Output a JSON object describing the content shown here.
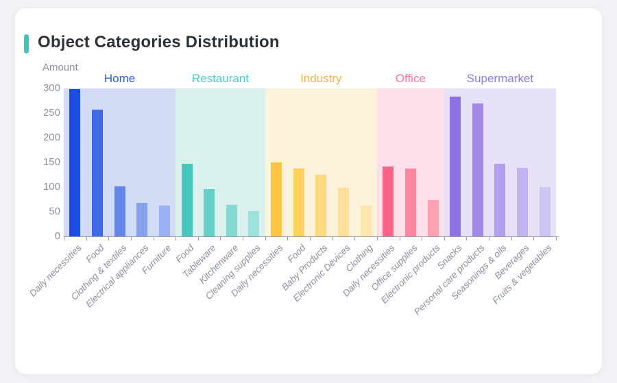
{
  "page": {
    "background_color": "#f0f2f5"
  },
  "card": {
    "title": "Object Categories Distribution",
    "accent_color": "#3ec6b8"
  },
  "chart_data": {
    "type": "bar",
    "title": "Object Categories Distribution",
    "xlabel": "",
    "ylabel": "Amount",
    "ylim": [
      0,
      300
    ],
    "yticks": [
      0,
      50,
      100,
      150,
      200,
      250,
      300
    ],
    "grid": false,
    "legend_position": "group labels above plot bands",
    "groups": [
      {
        "name": "Home",
        "label_color": "#2b5ce6",
        "band_color": "#d3dcf7",
        "bars": [
          {
            "label": "Daily necessities",
            "value": 298,
            "color": "#1c4ce1"
          },
          {
            "label": "Food",
            "value": 257,
            "color": "#3f69e8"
          },
          {
            "label": "Clothing & textiles",
            "value": 102,
            "color": "#6386ec"
          },
          {
            "label": "Electrical appliances",
            "value": 68,
            "color": "#86a1ef"
          },
          {
            "label": "Furniture",
            "value": 63,
            "color": "#9cb1f2"
          }
        ]
      },
      {
        "name": "Restaurant",
        "label_color": "#4bcdc3",
        "band_color": "#daf1ee",
        "bars": [
          {
            "label": "Food",
            "value": 147,
            "color": "#48c6bd"
          },
          {
            "label": "Tableware",
            "value": 96,
            "color": "#66d0c8"
          },
          {
            "label": "Kitchenware",
            "value": 64,
            "color": "#84d9d2"
          },
          {
            "label": "Cleaning supplies",
            "value": 51,
            "color": "#9ee1da"
          }
        ]
      },
      {
        "name": "Industry",
        "label_color": "#edb544",
        "band_color": "#fdf2da",
        "bars": [
          {
            "label": "Daily necessities",
            "value": 150,
            "color": "#ffc440"
          },
          {
            "label": "Food",
            "value": 138,
            "color": "#fed060"
          },
          {
            "label": "Baby Products",
            "value": 125,
            "color": "#ffd77e"
          },
          {
            "label": "Electronic Devices",
            "value": 98,
            "color": "#fee09b"
          },
          {
            "label": "Clothing",
            "value": 63,
            "color": "#ffe5ae"
          }
        ]
      },
      {
        "name": "Office",
        "label_color": "#fa7ba0",
        "band_color": "#fde0e9",
        "bars": [
          {
            "label": "Daily necessities",
            "value": 141,
            "color": "#fb6389"
          },
          {
            "label": "Office supplies",
            "value": 138,
            "color": "#fc85a0"
          },
          {
            "label": "Electronic products",
            "value": 74,
            "color": "#fe9fb4"
          }
        ]
      },
      {
        "name": "Supermarket",
        "label_color": "#8f7ae8",
        "band_color": "#e7e2f8",
        "bars": [
          {
            "label": "Snacks",
            "value": 283,
            "color": "#8d71e2"
          },
          {
            "label": "Personal care products",
            "value": 270,
            "color": "#a189e8"
          },
          {
            "label": "Seasonings & oils",
            "value": 147,
            "color": "#b2a0ec"
          },
          {
            "label": "Beverages",
            "value": 139,
            "color": "#c2b4f0"
          },
          {
            "label": "Fruits & vegetables",
            "value": 100,
            "color": "#cfc5f3"
          }
        ]
      }
    ]
  }
}
